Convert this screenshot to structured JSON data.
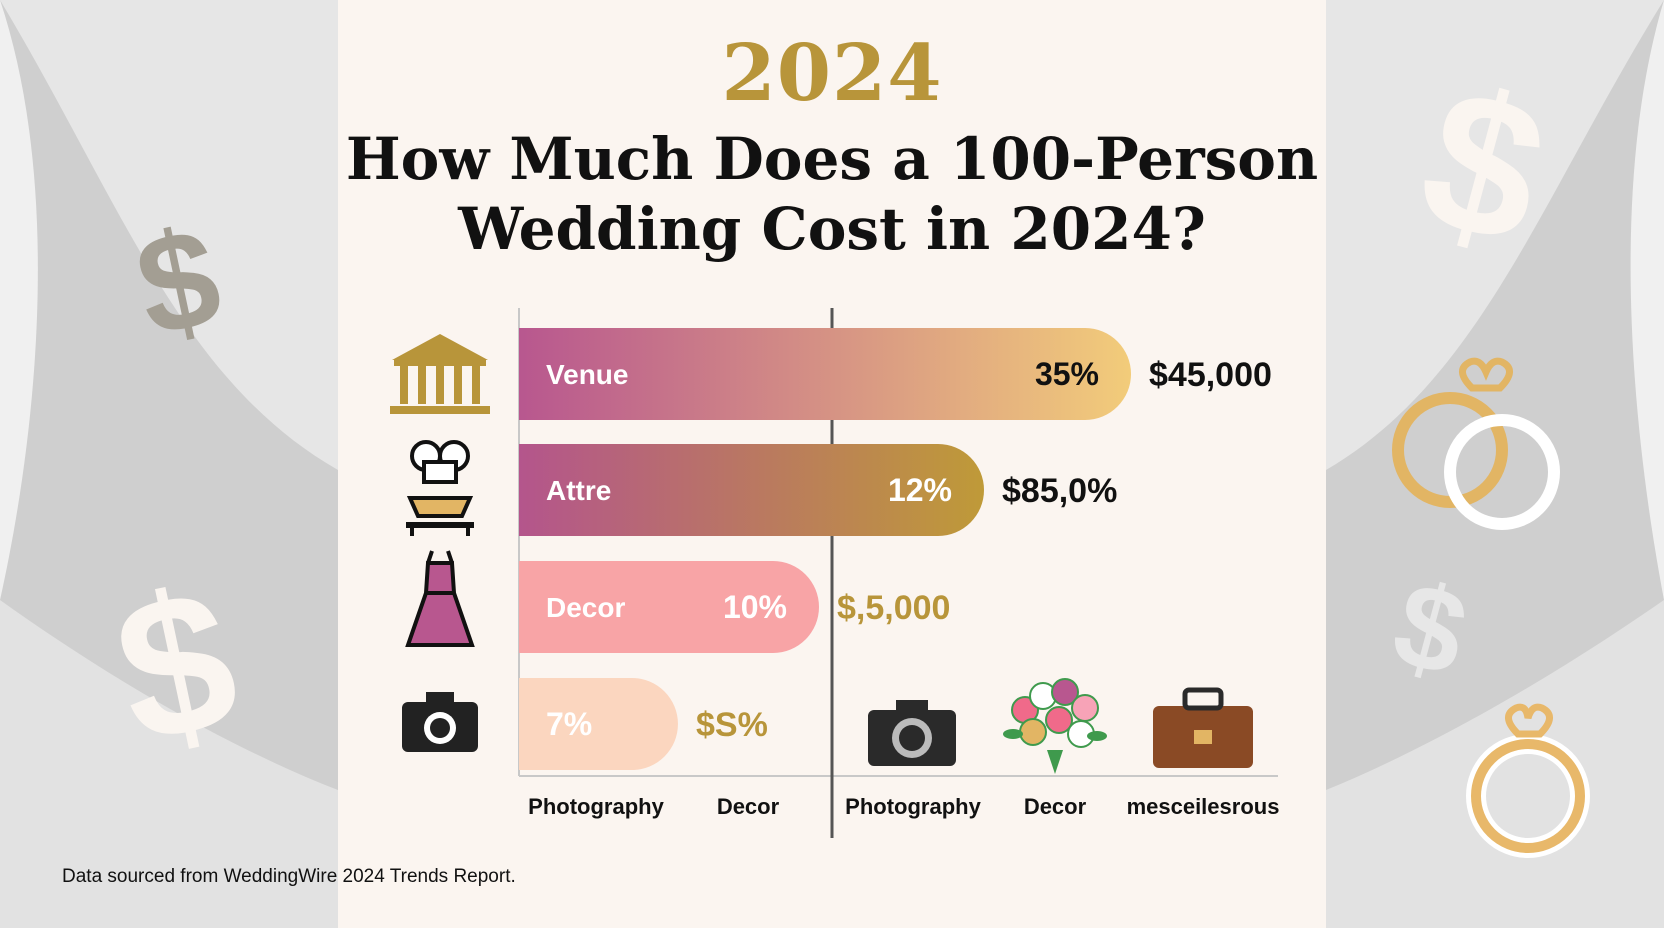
{
  "header": {
    "year": "2024",
    "title_line1": "How Much Does a 100-Person",
    "title_line2": "Wedding Cost in 2024?"
  },
  "chart_data": {
    "type": "bar",
    "orientation": "horizontal",
    "categories": [
      "Venue",
      "Attre",
      "Decor",
      ""
    ],
    "values": [
      35,
      12,
      10,
      7
    ],
    "bar_labels": [
      "35%",
      "12%",
      "10%",
      "7%"
    ],
    "value_labels": [
      "$45,000",
      "$85,0%",
      "$,5,000",
      "$S%"
    ],
    "bar_colors": [
      [
        "#b8578f",
        "#f2cc7a"
      ],
      [
        "#b4558c",
        "#bf9a38"
      ],
      [
        "#f8a4a6",
        "#f8a4a6"
      ],
      [
        "#fbd6bf",
        "#fbd6bf"
      ]
    ],
    "category_icons": [
      "bank-icon",
      "chef-hat-icon",
      "dress-icon",
      "camera-icon"
    ],
    "x_tick_labels": [
      "Photography",
      "Decor",
      "Photography",
      "Decor",
      "mesceilesrous"
    ],
    "bottom_icons": [
      "camera-icon",
      "bouquet-icon",
      "briefcase-icon"
    ],
    "grid": false,
    "legend": "none"
  },
  "footer": {
    "source": "Data sourced from WeddingWire 2024 Trends Report."
  },
  "colors": {
    "gold": "#b8953a",
    "title": "#111111",
    "panel": "#fbf5f0"
  }
}
